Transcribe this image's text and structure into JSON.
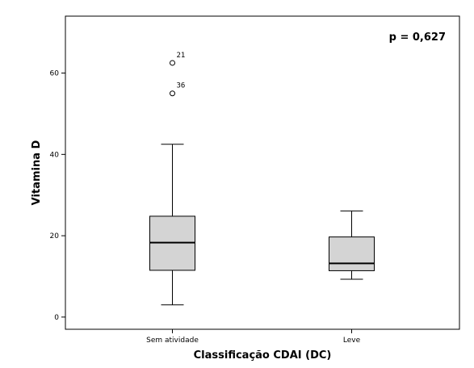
{
  "chart_data": {
    "type": "boxplot",
    "title": "",
    "xlabel": "Classificação CDAI (DC)",
    "ylabel": "Vitamina D",
    "ylim": [
      -3,
      74
    ],
    "yticks": [
      "0",
      "20",
      "40",
      "60"
    ],
    "yticks_values": [
      0,
      20,
      40,
      60
    ],
    "grid": false,
    "annotation": "p = 0,627",
    "categories": [
      "Sem atividade",
      "Leve"
    ],
    "boxes": [
      {
        "category": "Sem atividade",
        "whisker_low": 3,
        "q1": 11.5,
        "median": 18.3,
        "q3": 24.8,
        "whisker_high": 42.5,
        "outliers": [
          {
            "value": 62.5,
            "label": "21"
          },
          {
            "value": 55,
            "label": "36"
          }
        ]
      },
      {
        "category": "Leve",
        "whisker_low": 9.3,
        "q1": 11.4,
        "median": 13.2,
        "q3": 19.7,
        "whisker_high": 26.1,
        "outliers": []
      }
    ],
    "box_fill": "#d4d4d4"
  }
}
